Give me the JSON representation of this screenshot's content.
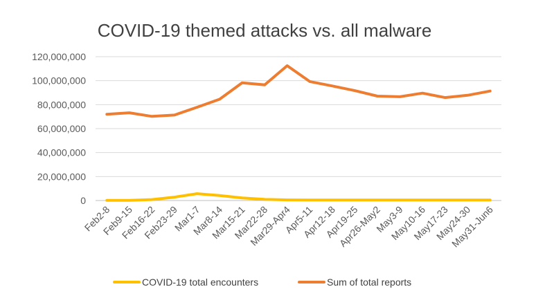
{
  "chart_data": {
    "type": "line",
    "title": "COVID-19 themed attacks vs. all malware",
    "xlabel": "",
    "ylabel": "",
    "categories": [
      "Feb2-8",
      "Feb9-15",
      "Feb16-22",
      "Feb23-29",
      "Mar1-7",
      "Mar8-14",
      "Mar15-21",
      "Mar22-28",
      "Mar29-Apr4",
      "Apr5-11",
      "Apr12-18",
      "Apr19-25",
      "Apr26-May2",
      "May3-9",
      "May10-16",
      "May17-23",
      "May24-30",
      "May31-Jun6"
    ],
    "ylim": [
      0,
      120000000
    ],
    "yticks": [
      0,
      20000000,
      40000000,
      60000000,
      80000000,
      100000000,
      120000000
    ],
    "ytick_labels": [
      "0",
      "20,000,000",
      "40,000,000",
      "60,000,000",
      "80,000,000",
      "100,000,000",
      "120,000,000"
    ],
    "grid": true,
    "legend_position": "bottom",
    "series": [
      {
        "name": "COVID-19 total encounters",
        "color": "#FFC000",
        "values": [
          100000,
          200000,
          800000,
          2800000,
          5700000,
          4200000,
          2200000,
          1000000,
          500000,
          400000,
          400000,
          400000,
          400000,
          400000,
          400000,
          400000,
          400000,
          400000
        ]
      },
      {
        "name": "Sum of total reports",
        "color": "#ED7D31",
        "values": [
          72000000,
          73200000,
          70200000,
          71300000,
          77800000,
          84500000,
          98200000,
          96500000,
          112500000,
          99300000,
          95600000,
          91700000,
          87100000,
          86600000,
          89600000,
          85900000,
          87800000,
          91300000
        ]
      }
    ]
  }
}
